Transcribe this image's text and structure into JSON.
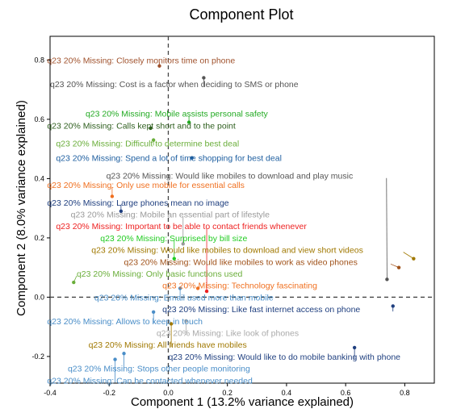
{
  "chart_data": {
    "type": "scatter",
    "title": "Component Plot",
    "xlabel": "Component 1 (13.2% variance explained)",
    "ylabel": "Component 2 (8.0% variance explained)",
    "xlim": [
      -0.4,
      0.9
    ],
    "ylim": [
      -0.29,
      0.88
    ],
    "xticks": [
      -0.4,
      -0.2,
      0.0,
      0.2,
      0.4,
      0.6,
      0.8
    ],
    "yticks": [
      -0.2,
      0.0,
      0.2,
      0.4,
      0.6,
      0.8
    ],
    "xtick_labels": [
      "-0.4",
      "-0.2",
      "0.0",
      "0.2",
      "0.4",
      "0.6",
      "0.8"
    ],
    "ytick_labels": [
      "-0.2",
      "0.0",
      "0.2",
      "0.4",
      "0.6",
      "0.8"
    ],
    "reference_lines": {
      "x": 0.0,
      "y": 0.0
    },
    "grid": false,
    "points": [
      {
        "text": "q23 20% Missing: Closely monitors time on phone",
        "x": -0.03,
        "y": 0.78,
        "lx": -0.41,
        "ly": 0.8,
        "color": "#a0522d"
      },
      {
        "text": "q23 20% Missing: Cost is a factor when deciding to SMS or phone",
        "x": 0.12,
        "y": 0.74,
        "lx": -0.4,
        "ly": 0.72,
        "color": "#555555"
      },
      {
        "text": "q23 20% Missing: Mobile assists personal safety",
        "x": 0.07,
        "y": 0.59,
        "lx": -0.28,
        "ly": 0.62,
        "color": "#22aa22"
      },
      {
        "text": "q23 20% Missing: Calls kept short and to the point",
        "x": -0.06,
        "y": 0.57,
        "lx": -0.41,
        "ly": 0.58,
        "color": "#2e5e1e"
      },
      {
        "text": "q23 20% Missing: Difficult to determine best deal",
        "x": -0.05,
        "y": 0.53,
        "lx": -0.38,
        "ly": 0.52,
        "color": "#6aae3a"
      },
      {
        "text": "q23 20% Missing: Spend a lot of time shopping for best deal",
        "x": 0.08,
        "y": 0.47,
        "lx": -0.38,
        "ly": 0.47,
        "color": "#1f5fa0"
      },
      {
        "text": "q23 20% Missing: Would like mobiles to download and play music",
        "x": 0.74,
        "y": 0.06,
        "lx": -0.21,
        "ly": 0.41,
        "color": "#555555"
      },
      {
        "text": "q23 20% Missing: Only use mobile for essential calls",
        "x": -0.19,
        "y": 0.34,
        "lx": -0.41,
        "ly": 0.38,
        "color": "#f07020"
      },
      {
        "text": "q23 20% Missing: Large phones mean no image",
        "x": -0.16,
        "y": 0.29,
        "lx": -0.41,
        "ly": 0.32,
        "color": "#1f3f7f"
      },
      {
        "text": "q23 20% Missing: Mobile an essential part of lifestyle",
        "x": 0.05,
        "y": 0.18,
        "lx": -0.33,
        "ly": 0.28,
        "color": "#999999"
      },
      {
        "text": "q23 20% Missing: Important to be able to contact friends whenever",
        "x": 0.13,
        "y": 0.02,
        "lx": -0.38,
        "ly": 0.24,
        "color": "#ee2222"
      },
      {
        "text": "q23 20% Missing: Surprised by bill size",
        "x": 0.02,
        "y": 0.13,
        "lx": -0.23,
        "ly": 0.2,
        "color": "#22cc22"
      },
      {
        "text": "q23 20% Missing: Would like mobiles to download and view short videos",
        "x": 0.83,
        "y": 0.13,
        "lx": -0.26,
        "ly": 0.16,
        "color": "#a07800"
      },
      {
        "text": "q23 20% Missing: Would like mobiles to work as video phones",
        "x": 0.78,
        "y": 0.1,
        "lx": -0.15,
        "ly": 0.12,
        "color": "#a0521a"
      },
      {
        "text": "q23 20% Missing: Only basic functions used",
        "x": -0.32,
        "y": 0.05,
        "lx": -0.31,
        "ly": 0.08,
        "color": "#6aae3a"
      },
      {
        "text": "q23 20% Missing: Technology fascinating",
        "x": 0.1,
        "y": 0.03,
        "lx": -0.02,
        "ly": 0.04,
        "color": "#f07020"
      },
      {
        "text": "q23 20% Missing: Email used more than mobile",
        "x": 0.04,
        "y": 0.03,
        "lx": -0.25,
        "ly": 0.0,
        "color": "#4a8ec8"
      },
      {
        "text": "q23 20% Missing: Like fast internet access on phone",
        "x": 0.76,
        "y": -0.03,
        "lx": -0.02,
        "ly": -0.04,
        "color": "#1f3f7f"
      },
      {
        "text": "q23 20% Missing: Allows to keep in touch",
        "x": -0.05,
        "y": -0.05,
        "lx": -0.41,
        "ly": -0.08,
        "color": "#4a8ec8"
      },
      {
        "text": "q23 20% Missing: Like look of phones",
        "x": 0.06,
        "y": -0.08,
        "lx": -0.04,
        "ly": -0.12,
        "color": "#aaaaaa"
      },
      {
        "text": "q23 20% Missing: All friends have mobiles",
        "x": 0.01,
        "y": -0.09,
        "lx": -0.27,
        "ly": -0.16,
        "color": "#a07800"
      },
      {
        "text": "q23 20% Missing: Would like to do mobile banking with phone",
        "x": 0.63,
        "y": -0.17,
        "lx": 0.0,
        "ly": -0.2,
        "color": "#1f3f7f"
      },
      {
        "text": "q23 20% Missing: Stops other people monitoring",
        "x": -0.15,
        "y": -0.19,
        "lx": -0.34,
        "ly": -0.24,
        "color": "#4a8ec8"
      },
      {
        "text": "q23 20% Missing: Can be contacted whenever needed",
        "x": -0.18,
        "y": -0.21,
        "lx": -0.41,
        "ly": -0.28,
        "color": "#4a8ec8"
      }
    ]
  }
}
